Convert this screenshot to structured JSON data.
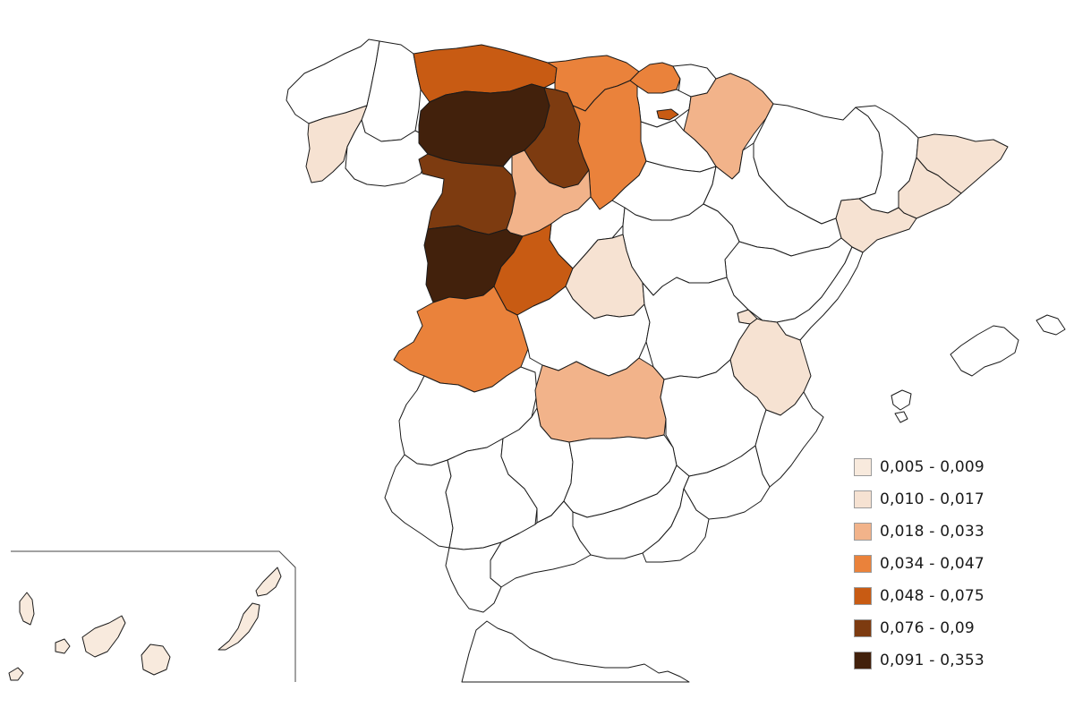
{
  "colors": {
    "background": "#ffffff",
    "border": "#1a1a1a",
    "inset_frame": "#444444",
    "empty": "#ffffff",
    "class1": "#f8eadd",
    "class2": "#f6e2d2",
    "class3": "#f2b38a",
    "class4": "#ea823b",
    "class5": "#c85b13",
    "class6": "#7d3b10",
    "class7": "#42210c"
  },
  "legend": {
    "items": [
      {
        "label": "0,005 - 0,009",
        "color": "#f8eadd"
      },
      {
        "label": "0,010 - 0,017",
        "color": "#f6e2d2"
      },
      {
        "label": "0,018 - 0,033",
        "color": "#f2b38a"
      },
      {
        "label": "0,034 - 0,047",
        "color": "#ea823b"
      },
      {
        "label": "0,048 - 0,075",
        "color": "#c85b13"
      },
      {
        "label": "0,076 - 0,09",
        "color": "#7d3b10"
      },
      {
        "label": "0,091 - 0,353",
        "color": "#42210c"
      }
    ]
  }
}
